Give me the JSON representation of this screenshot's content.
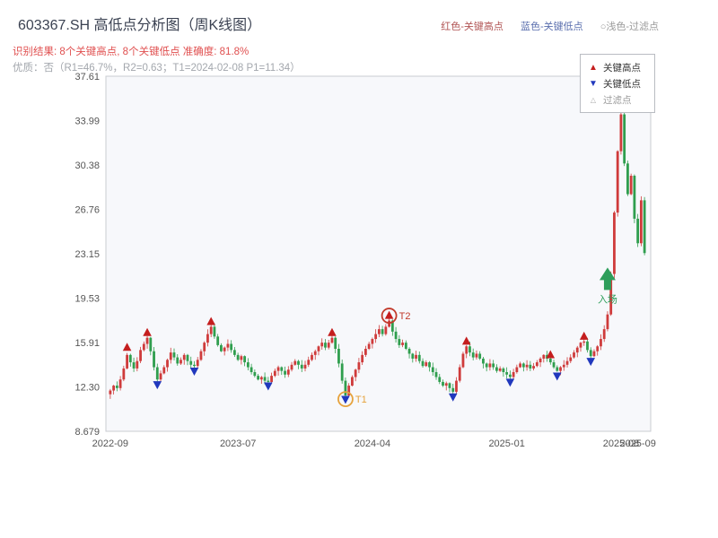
{
  "header": {
    "title": "603367.SH 高低点分析图（周K线图）",
    "result_line": "识别结果: 8个关键高点, 8个关键低点   准确度: 81.8%",
    "quality_line": "优质：否（R1=46.7%，R2=0.63；T1=2024-02-08 P1=11.34）",
    "legend": [
      {
        "label": "红色-关键高点",
        "color": "#b15555"
      },
      {
        "label": "蓝色-关键低点",
        "color": "#5b6fae"
      },
      {
        "label": "○浅色-过滤点",
        "color": "#9a9a9a"
      }
    ]
  },
  "chart_data": {
    "type": "candlestick",
    "title": "603367.SH 高低点分析图（周K线图）",
    "ylim": [
      8.679,
      37.61
    ],
    "y_ticks": [
      "8.679",
      "12.30",
      "15.91",
      "19.53",
      "23.15",
      "26.76",
      "30.38",
      "33.99",
      "37.61"
    ],
    "x_ticks": [
      {
        "index": 0,
        "label": "2022-09"
      },
      {
        "index": 38,
        "label": "2023-07"
      },
      {
        "index": 78,
        "label": "2024-04"
      },
      {
        "index": 118,
        "label": "2025-01"
      },
      {
        "index": 152,
        "label": "2025-08"
      },
      {
        "index": 157,
        "label": "2025-09"
      }
    ],
    "closes": [
      12.0,
      12.4,
      12.2,
      12.9,
      13.8,
      14.9,
      14.3,
      13.8,
      14.4,
      15.3,
      15.8,
      16.3,
      15.2,
      13.9,
      12.9,
      13.4,
      13.9,
      14.5,
      15.1,
      14.7,
      14.2,
      14.5,
      14.9,
      14.4,
      14.1,
      14.0,
      14.5,
      15.2,
      15.9,
      16.6,
      17.2,
      16.4,
      15.7,
      15.2,
      15.5,
      15.8,
      15.3,
      14.9,
      14.5,
      14.8,
      14.3,
      13.9,
      13.5,
      13.2,
      12.9,
      13.1,
      12.8,
      12.7,
      13.2,
      13.6,
      13.9,
      13.6,
      13.3,
      13.7,
      14.1,
      14.4,
      14.1,
      13.8,
      14.1,
      14.5,
      14.9,
      15.2,
      15.6,
      15.9,
      15.5,
      15.9,
      16.3,
      15.4,
      14.2,
      12.8,
      11.6,
      12.4,
      13.1,
      13.7,
      14.3,
      14.9,
      15.4,
      15.8,
      16.2,
      16.6,
      17.0,
      16.6,
      17.2,
      17.7,
      16.8,
      16.2,
      15.7,
      15.9,
      15.4,
      15.0,
      14.6,
      14.9,
      14.4,
      14.0,
      14.3,
      13.9,
      13.5,
      13.1,
      12.7,
      12.4,
      12.6,
      12.2,
      11.9,
      12.8,
      13.9,
      15.0,
      15.6,
      15.1,
      14.7,
      15.0,
      14.6,
      14.2,
      13.9,
      14.2,
      13.9,
      13.6,
      13.8,
      13.5,
      13.3,
      13.1,
      13.5,
      13.9,
      14.2,
      13.9,
      14.1,
      13.8,
      14.0,
      14.3,
      14.6,
      14.9,
      14.6,
      14.3,
      13.9,
      13.6,
      13.9,
      14.1,
      14.4,
      14.7,
      15.1,
      15.5,
      15.9,
      16.0,
      15.3,
      14.8,
      15.2,
      15.6,
      16.2,
      17.0,
      18.2,
      21.5,
      26.5,
      31.5,
      34.5,
      30.5,
      28.0,
      29.5,
      26.0,
      24.0,
      27.5,
      23.2
    ],
    "key_highs": [
      {
        "index": 5,
        "value": 15.5
      },
      {
        "index": 11,
        "value": 16.7
      },
      {
        "index": 30,
        "value": 17.6
      },
      {
        "index": 66,
        "value": 16.7
      },
      {
        "index": 83,
        "value": 18.1
      },
      {
        "index": 106,
        "value": 16.0
      },
      {
        "index": 131,
        "value": 14.9
      },
      {
        "index": 141,
        "value": 16.4
      }
    ],
    "key_lows": [
      {
        "index": 14,
        "value": 12.5
      },
      {
        "index": 25,
        "value": 13.6
      },
      {
        "index": 47,
        "value": 12.4
      },
      {
        "index": 70,
        "value": 11.3
      },
      {
        "index": 102,
        "value": 11.5
      },
      {
        "index": 119,
        "value": 12.7
      },
      {
        "index": 133,
        "value": 13.2
      },
      {
        "index": 143,
        "value": 14.4
      }
    ],
    "annotations": [
      {
        "label": "T1",
        "index": 70,
        "value": 11.3,
        "color": "#e6a23c"
      },
      {
        "label": "T2",
        "index": 83,
        "value": 18.1,
        "color": "#c23a2b"
      }
    ],
    "entry_marker": {
      "label": "入场",
      "index": 148,
      "value": 21.0
    },
    "legend_box": {
      "items": [
        {
          "label": "关键高点",
          "marker": "up-triangle"
        },
        {
          "label": "关键低点",
          "marker": "down-triangle"
        },
        {
          "label": "过滤点",
          "marker": "open-triangle"
        }
      ]
    },
    "colors": {
      "up": "#cf3b3b",
      "down": "#2f9e4e",
      "high_marker": "#c41e1e",
      "low_marker": "#2138bd",
      "filter_marker": "#aaaaaa",
      "entry": "#2e9e5b",
      "panel_bg": "#f7f8fb",
      "panel_border": "#c9ccd1",
      "axis_text": "#555555"
    }
  }
}
